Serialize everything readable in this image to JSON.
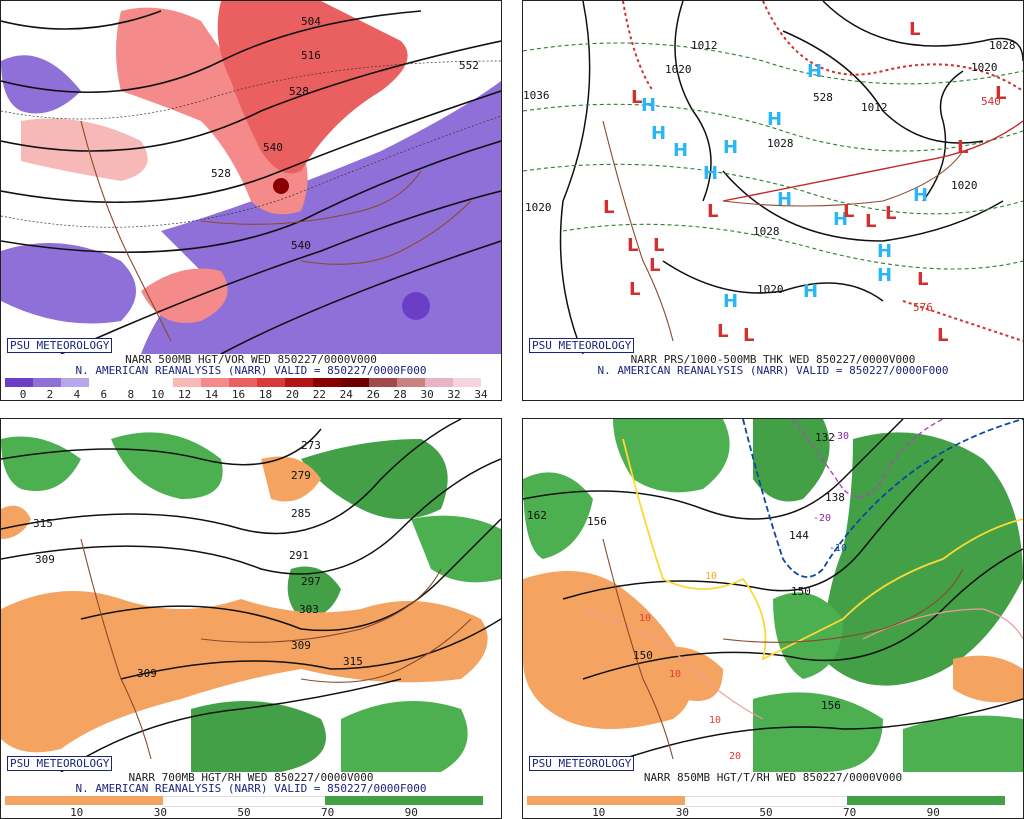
{
  "panels": [
    {
      "badge": "PSU METEOROLOGY",
      "caption_line1": "NARR 500MB HGT/VOR WED 850227/0000V000",
      "caption_line2": "N. AMERICAN REANALYSIS (NARR) VALID = 850227/0000F000",
      "colorbar_ticks": [
        "0",
        "2",
        "4",
        "6",
        "8",
        "10",
        "12",
        "14",
        "16",
        "18",
        "20",
        "22",
        "24",
        "26",
        "28",
        "30",
        "32",
        "34"
      ],
      "contour_labels": [
        "504",
        "516",
        "528",
        "540",
        "552",
        "540",
        "528"
      ],
      "colors": [
        "#6a3fc6",
        "#8f6fd8",
        "#b8a6ea",
        "#ffffff",
        "#ffffff",
        "#ffffff",
        "#f7b8b8",
        "#f48a8a",
        "#ea5f5f",
        "#d83a3a",
        "#b31515",
        "#8a0000",
        "#6e0000",
        "#a24a4a",
        "#c98282",
        "#e8b4c8",
        "#f7d3e2"
      ]
    },
    {
      "badge": "PSU METEOROLOGY",
      "caption_line1": "NARR PRS/1000-500MB THK WED 850227/0000V000",
      "caption_line2": "N. AMERICAN REANALYSIS (NARR) VALID = 850227/0000F000",
      "contour_labels": [
        "1012",
        "1020",
        "1028",
        "1028",
        "1020",
        "1020",
        "1020",
        "1036",
        "1012",
        "1028",
        "1020",
        "540",
        "576",
        "528"
      ]
    },
    {
      "badge": "PSU METEOROLOGY",
      "caption_line1": "NARR 700MB HGT/RH WED 850227/0000V000",
      "caption_line2": "N. AMERICAN REANALYSIS (NARR) VALID = 850227/0000F000",
      "colorbar_ticks": [
        "10",
        "30",
        "50",
        "70",
        "90"
      ],
      "contour_labels": [
        "273",
        "279",
        "285",
        "291",
        "297",
        "303",
        "309",
        "315",
        "315",
        "309",
        "309"
      ]
    },
    {
      "badge": "PSU METEOROLOGY",
      "caption_line1": "NARR 850MB HGT/T/RH WED 850227/0000V000",
      "caption_line2": "",
      "colorbar_ticks": [
        "10",
        "30",
        "50",
        "70",
        "90"
      ],
      "contour_labels": [
        "132",
        "138",
        "144",
        "150",
        "156",
        "162",
        "150",
        "156"
      ],
      "temp_labels": [
        "-30",
        "-20",
        "-10",
        "10",
        "10",
        "10",
        "10",
        "20"
      ]
    }
  ]
}
